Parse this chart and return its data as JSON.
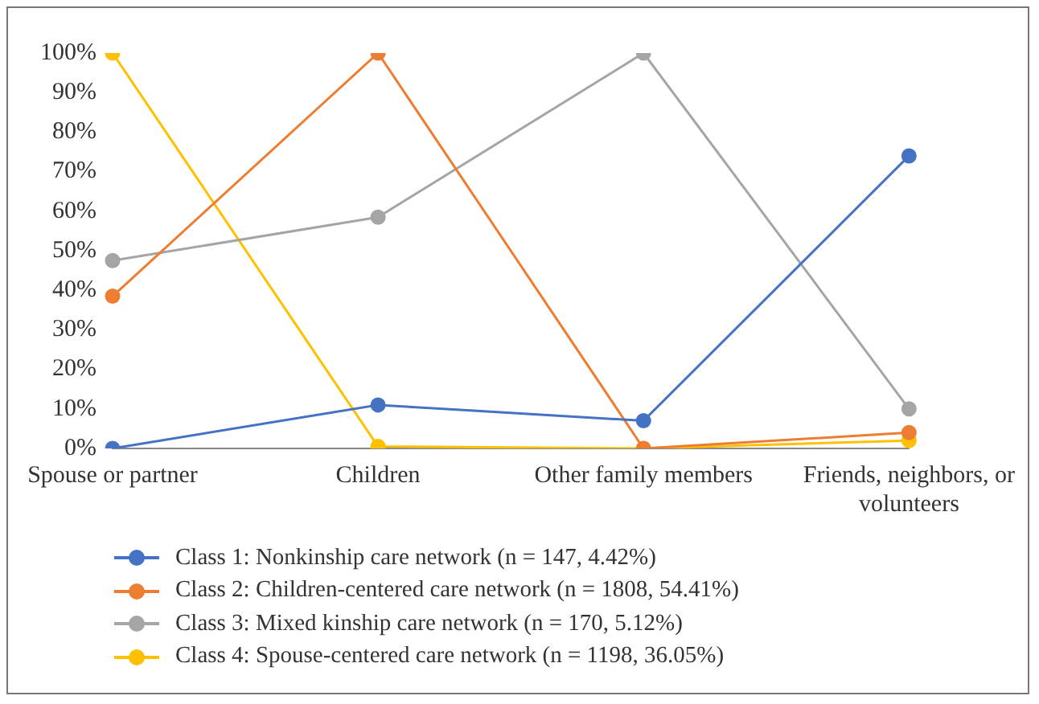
{
  "chart_data": {
    "type": "line",
    "categories": [
      "Spouse or partner",
      "Children",
      "Other family members",
      "Friends, neighbors, or volunteers"
    ],
    "series": [
      {
        "name": "Class 1: Nonkinship care network (n = 147, 4.42%)",
        "color": "#4472c4",
        "values": [
          0,
          11,
          7,
          74
        ]
      },
      {
        "name": "Class 2: Children-centered care network (n = 1808, 54.41%)",
        "color": "#ed7d31",
        "values": [
          38.5,
          100,
          0,
          4
        ]
      },
      {
        "name": "Class 3: Mixed kinship care network (n = 170, 5.12%)",
        "color": "#a5a5a5",
        "values": [
          47.5,
          58.5,
          100,
          10
        ]
      },
      {
        "name": "Class 4: Spouse-centered care network (n = 1198, 36.05%)",
        "color": "#ffc000",
        "values": [
          100,
          0.5,
          0,
          2
        ]
      }
    ],
    "ylim": [
      0,
      100
    ],
    "yticks": [
      {
        "value": 0,
        "label": "0%"
      },
      {
        "value": 10,
        "label": "10%"
      },
      {
        "value": 20,
        "label": "20%"
      },
      {
        "value": 30,
        "label": "30%"
      },
      {
        "value": 40,
        "label": "40%"
      },
      {
        "value": 50,
        "label": "50%"
      },
      {
        "value": 60,
        "label": "60%"
      },
      {
        "value": 70,
        "label": "70%"
      },
      {
        "value": 80,
        "label": "80%"
      },
      {
        "value": 90,
        "label": "90%"
      },
      {
        "value": 100,
        "label": "100%"
      }
    ],
    "grid": false,
    "legend": "bottom",
    "marker": "circle",
    "line_style": "solid"
  }
}
